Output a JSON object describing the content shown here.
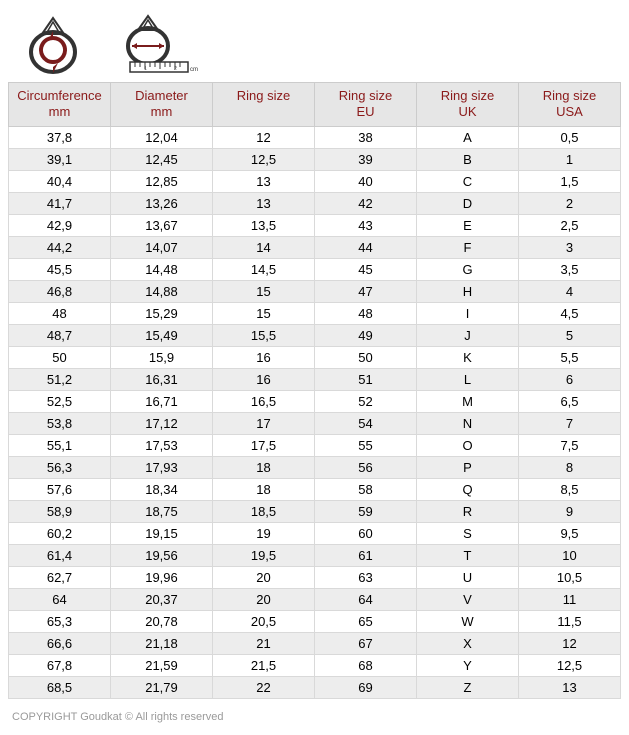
{
  "icons": {
    "circumference_icon": "ring-circumference-icon",
    "diameter_icon": "ring-diameter-icon"
  },
  "table": {
    "header_color": "#8b1a1a",
    "header_bg": "#e6e6e6",
    "row_alt_bg": "#ededed",
    "columns": [
      {
        "line1": "Circumference",
        "line2": "mm"
      },
      {
        "line1": "Diameter",
        "line2": "mm"
      },
      {
        "line1": "Ring size",
        "line2": ""
      },
      {
        "line1": "Ring size",
        "line2": "EU"
      },
      {
        "line1": "Ring size",
        "line2": "UK"
      },
      {
        "line1": "Ring size",
        "line2": "USA"
      }
    ],
    "rows": [
      [
        "37,8",
        "12,04",
        "12",
        "38",
        "A",
        "0,5"
      ],
      [
        "39,1",
        "12,45",
        "12,5",
        "39",
        "B",
        "1"
      ],
      [
        "40,4",
        "12,85",
        "13",
        "40",
        "C",
        "1,5"
      ],
      [
        "41,7",
        "13,26",
        "13",
        "42",
        "D",
        "2"
      ],
      [
        "42,9",
        "13,67",
        "13,5",
        "43",
        "E",
        "2,5"
      ],
      [
        "44,2",
        "14,07",
        "14",
        "44",
        "F",
        "3"
      ],
      [
        "45,5",
        "14,48",
        "14,5",
        "45",
        "G",
        "3,5"
      ],
      [
        "46,8",
        "14,88",
        "15",
        "47",
        "H",
        "4"
      ],
      [
        "48",
        "15,29",
        "15",
        "48",
        "I",
        "4,5"
      ],
      [
        "48,7",
        "15,49",
        "15,5",
        "49",
        "J",
        "5"
      ],
      [
        "50",
        "15,9",
        "16",
        "50",
        "K",
        "5,5"
      ],
      [
        "51,2",
        "16,31",
        "16",
        "51",
        "L",
        "6"
      ],
      [
        "52,5",
        "16,71",
        "16,5",
        "52",
        "M",
        "6,5"
      ],
      [
        "53,8",
        "17,12",
        "17",
        "54",
        "N",
        "7"
      ],
      [
        "55,1",
        "17,53",
        "17,5",
        "55",
        "O",
        "7,5"
      ],
      [
        "56,3",
        "17,93",
        "18",
        "56",
        "P",
        "8"
      ],
      [
        "57,6",
        "18,34",
        "18",
        "58",
        "Q",
        "8,5"
      ],
      [
        "58,9",
        "18,75",
        "18,5",
        "59",
        "R",
        "9"
      ],
      [
        "60,2",
        "19,15",
        "19",
        "60",
        "S",
        "9,5"
      ],
      [
        "61,4",
        "19,56",
        "19,5",
        "61",
        "T",
        "10"
      ],
      [
        "62,7",
        "19,96",
        "20",
        "63",
        "U",
        "10,5"
      ],
      [
        "64",
        "20,37",
        "20",
        "64",
        "V",
        "11"
      ],
      [
        "65,3",
        "20,78",
        "20,5",
        "65",
        "W",
        "11,5"
      ],
      [
        "66,6",
        "21,18",
        "21",
        "67",
        "X",
        "12"
      ],
      [
        "67,8",
        "21,59",
        "21,5",
        "68",
        "Y",
        "12,5"
      ],
      [
        "68,5",
        "21,79",
        "22",
        "69",
        "Z",
        "13"
      ]
    ]
  },
  "copyright": "COPYRIGHT Goudkat ©   All rights reserved"
}
